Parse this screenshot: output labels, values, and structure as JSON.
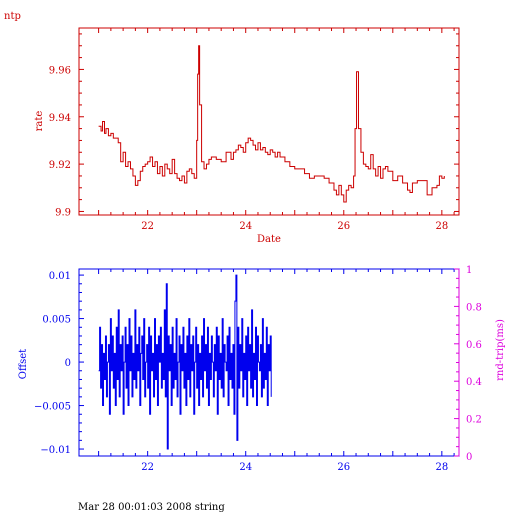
{
  "page": {
    "corner_label": "ntp",
    "footer": "Mar 28 00:01:03 2008 string"
  },
  "colors": {
    "rate": "#cc0000",
    "offset": "#0000ee",
    "roundtrip": "#dd00dd",
    "background": "#ffffff"
  },
  "chart_data": [
    {
      "type": "line",
      "title": "",
      "xlabel": "Date",
      "ylabel": "rate",
      "xlim": [
        20.6,
        28.35
      ],
      "ylim": [
        9.8985,
        9.9775
      ],
      "x_ticks": [
        22,
        24,
        26,
        28
      ],
      "y_ticks": [
        9.9,
        9.92,
        9.94,
        9.96
      ],
      "y_tick_labels": [
        "9.9",
        "9.92",
        "9.94",
        "9.96"
      ],
      "series": [
        {
          "x": [
            21.0,
            21.05,
            21.08,
            21.12,
            21.15,
            21.2,
            21.25,
            21.3,
            21.4,
            21.45,
            21.5,
            21.55,
            21.6,
            21.65,
            21.7,
            21.75,
            21.8,
            21.85,
            21.9,
            21.95,
            22.0,
            22.05,
            22.1,
            22.15,
            22.2,
            22.25,
            22.3,
            22.35,
            22.4,
            22.45,
            22.5,
            22.55,
            22.6,
            22.65,
            22.7,
            22.75,
            22.8,
            22.85,
            22.9,
            22.95,
            23.0,
            23.02,
            23.04,
            23.06,
            23.1,
            23.15,
            23.2,
            23.25,
            23.3,
            23.4,
            23.5,
            23.6,
            23.7,
            23.75,
            23.8,
            23.85,
            23.9,
            23.95,
            24.0,
            24.05,
            24.1,
            24.15,
            24.2,
            24.25,
            24.3,
            24.35,
            24.4,
            24.45,
            24.5,
            24.55,
            24.6,
            24.65,
            24.7,
            24.8,
            24.9,
            25.0,
            25.1,
            25.2,
            25.3,
            25.4,
            25.5,
            25.6,
            25.7,
            25.8,
            25.85,
            25.9,
            25.95,
            26.0,
            26.05,
            26.1,
            26.15,
            26.2,
            26.23,
            26.26,
            26.3,
            26.35,
            26.4,
            26.45,
            26.5,
            26.55,
            26.6,
            26.65,
            26.7,
            26.75,
            26.8,
            26.85,
            26.9,
            27.0,
            27.1,
            27.2,
            27.3,
            27.35,
            27.4,
            27.5,
            27.6,
            27.7,
            27.8,
            27.9,
            27.95,
            28.0,
            28.05
          ],
          "y": [
            9.936,
            9.934,
            9.938,
            9.933,
            9.935,
            9.932,
            9.933,
            9.931,
            9.929,
            9.921,
            9.925,
            9.919,
            9.921,
            9.918,
            9.915,
            9.911,
            9.913,
            9.917,
            9.919,
            9.92,
            9.921,
            9.923,
            9.919,
            9.921,
            9.916,
            9.919,
            9.915,
            9.92,
            9.918,
            9.916,
            9.922,
            9.916,
            9.914,
            9.913,
            9.915,
            9.912,
            9.917,
            9.918,
            9.916,
            9.914,
            9.93,
            9.958,
            9.97,
            9.945,
            9.921,
            9.918,
            9.92,
            9.922,
            9.923,
            9.922,
            9.921,
            9.925,
            9.922,
            9.925,
            9.926,
            9.928,
            9.927,
            9.925,
            9.929,
            9.931,
            9.93,
            9.928,
            9.926,
            9.929,
            9.926,
            9.927,
            9.925,
            9.924,
            9.926,
            9.925,
            9.923,
            9.925,
            9.923,
            9.921,
            9.919,
            9.918,
            9.918,
            9.916,
            9.914,
            9.915,
            9.915,
            9.914,
            9.912,
            9.909,
            9.907,
            9.911,
            9.907,
            9.904,
            9.909,
            9.911,
            9.91,
            9.915,
            9.935,
            9.959,
            9.935,
            9.925,
            9.92,
            9.919,
            9.918,
            9.924,
            9.918,
            9.915,
            9.919,
            9.914,
            9.918,
            9.919,
            9.917,
            9.913,
            9.915,
            9.912,
            9.909,
            9.908,
            9.912,
            9.913,
            9.913,
            9.907,
            9.91,
            9.911,
            9.915,
            9.914,
            9.915
          ]
        }
      ]
    },
    {
      "type": "line",
      "title": "",
      "xlabel": "",
      "ylabel": "Offset",
      "y2label": "rnd-trip(ms)",
      "xlim": [
        20.6,
        28.35
      ],
      "ylim": [
        -0.0108,
        0.0107
      ],
      "y2lim": [
        0,
        1
      ],
      "x_ticks": [
        22,
        24,
        26,
        28
      ],
      "y_ticks": [
        0.01,
        0.005,
        0,
        -0.005,
        -0.01
      ],
      "y_tick_labels": [
        "0.01",
        "0.005",
        "0",
        "−0.005",
        "−0.01"
      ],
      "y2_ticks": [
        0,
        0.2,
        0.4,
        0.6,
        0.8,
        1
      ],
      "y2_tick_labels": [
        "0",
        "0.2",
        "0.4",
        "0.6",
        "0.8",
        "1"
      ],
      "series": [
        {
          "x_start": 21.0,
          "x_step": 0.02,
          "y": [
            -0.001,
            0.004,
            -0.003,
            0.002,
            -0.005,
            0.001,
            -0.002,
            0.003,
            -0.004,
            0.0,
            0.002,
            -0.006,
            0.005,
            -0.001,
            0.003,
            -0.003,
            0.001,
            -0.005,
            0.004,
            -0.002,
            0.006,
            -0.004,
            0.002,
            -0.001,
            0.003,
            -0.006,
            0.0,
            0.004,
            -0.003,
            0.002,
            -0.005,
            0.005,
            -0.001,
            0.003,
            -0.004,
            0.001,
            -0.002,
            0.006,
            -0.003,
            0.002,
            -0.001,
            0.004,
            -0.005,
            0.001,
            0.003,
            -0.002,
            0.005,
            -0.004,
            0.0,
            0.002,
            -0.003,
            0.004,
            -0.006,
            0.003,
            -0.001,
            0.001,
            -0.004,
            0.005,
            -0.002,
            0.002,
            -0.005,
            0.003,
            0.0,
            0.004,
            -0.003,
            0.001,
            -0.002,
            0.006,
            -0.004,
            0.009,
            -0.01,
            0.003,
            -0.001,
            0.002,
            -0.005,
            0.004,
            -0.003,
            0.001,
            -0.002,
            0.005,
            -0.004,
            0.0,
            0.003,
            -0.006,
            0.002,
            -0.001,
            0.004,
            -0.003,
            0.001,
            -0.005,
            0.003,
            -0.002,
            0.005,
            -0.004,
            0.002,
            -0.001,
            0.003,
            -0.006,
            0.0,
            0.004,
            -0.003,
            0.002,
            -0.005,
            0.001,
            -0.002,
            0.003,
            -0.004,
            0.005,
            -0.001,
            0.002,
            -0.003,
            0.004,
            -0.005,
            0.001,
            -0.002,
            0.003,
            0.0,
            -0.004,
            0.002,
            -0.001,
            0.004,
            -0.006,
            0.003,
            -0.002,
            0.001,
            -0.003,
            0.005,
            -0.004,
            0.002,
            0.0,
            -0.001,
            0.003,
            -0.005,
            0.004,
            -0.002,
            0.001,
            -0.003,
            0.002,
            -0.006,
            0.007,
            0.01,
            -0.009,
            0.004,
            -0.003,
            0.002,
            -0.001,
            0.005,
            -0.004,
            0.001,
            -0.002,
            0.003,
            -0.005,
            0.004,
            -0.001,
            0.002,
            -0.003,
            0.006,
            -0.004,
            0.001,
            -0.002,
            0.004,
            -0.005,
            0.003,
            0.0,
            -0.001,
            0.002,
            -0.004,
            0.005,
            -0.003,
            0.001,
            -0.002,
            0.004,
            -0.005,
            0.002,
            -0.001,
            0.003,
            -0.004
          ]
        }
      ]
    }
  ]
}
